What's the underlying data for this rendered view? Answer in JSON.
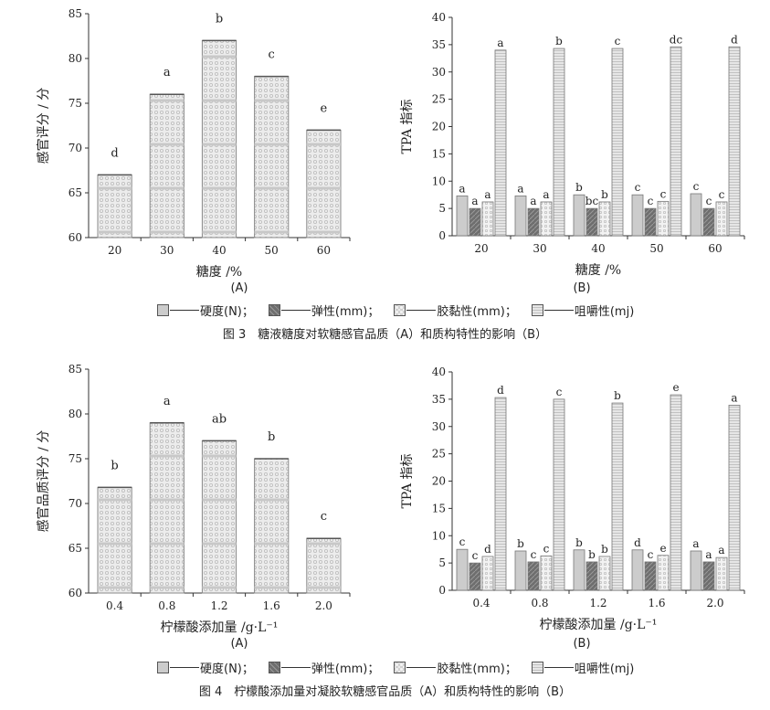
{
  "chart_data": [
    {
      "type": "bar",
      "panel": "(A)",
      "xlabel": "糖度 /%",
      "ylabel": "感官评分 / 分",
      "categories": [
        "20",
        "30",
        "40",
        "50",
        "60"
      ],
      "values": [
        67,
        76,
        82,
        78,
        72
      ],
      "letters": [
        "d",
        "a",
        "b",
        "c",
        "e"
      ],
      "ylim": [
        60,
        85
      ],
      "yticks": [
        60,
        65,
        70,
        75,
        80,
        85
      ]
    },
    {
      "type": "bar",
      "panel": "(B)",
      "xlabel": "糖度 /%",
      "ylabel": "TPA 指标",
      "categories": [
        "20",
        "30",
        "40",
        "50",
        "60"
      ],
      "ylim": [
        0,
        40
      ],
      "yticks": [
        0,
        5,
        10,
        15,
        20,
        25,
        30,
        35,
        40
      ],
      "series": [
        {
          "name": "硬度(N)",
          "values": [
            7.3,
            7.3,
            7.5,
            7.5,
            7.7
          ],
          "letters": [
            "a",
            "a",
            "b",
            "c",
            "c"
          ]
        },
        {
          "name": "弹性(mm)",
          "values": [
            5.0,
            5.0,
            5.0,
            5.0,
            5.0
          ],
          "letters": [
            "a",
            "a",
            "bc",
            "c",
            "c"
          ]
        },
        {
          "name": "胶黏性(mm)",
          "values": [
            6.2,
            6.2,
            6.2,
            6.3,
            6.2
          ],
          "letters": [
            "a",
            "a",
            "b",
            "c",
            "c"
          ]
        },
        {
          "name": "咀嚼性(mj)",
          "values": [
            34.0,
            34.3,
            34.3,
            34.6,
            34.6
          ],
          "letters": [
            "a",
            "b",
            "c",
            "dc",
            "d"
          ]
        }
      ]
    },
    {
      "type": "bar",
      "panel": "(A)",
      "xlabel": "柠檬酸添加量 /g·L⁻¹",
      "ylabel": "感官品质评分 / 分",
      "categories": [
        "0.4",
        "0.8",
        "1.2",
        "1.6",
        "2.0"
      ],
      "values": [
        71.8,
        79.0,
        77.0,
        75.0,
        66.1
      ],
      "letters": [
        "b",
        "a",
        "ab",
        "b",
        "c"
      ],
      "ylim": [
        60,
        85
      ],
      "yticks": [
        60,
        65,
        70,
        75,
        80,
        85
      ]
    },
    {
      "type": "bar",
      "panel": "(B)",
      "xlabel": "柠檬酸添加量 /g·L⁻¹",
      "ylabel": "TPA 指标",
      "categories": [
        "0.4",
        "0.8",
        "1.2",
        "1.6",
        "2.0"
      ],
      "ylim": [
        0,
        40
      ],
      "yticks": [
        0,
        5,
        10,
        15,
        20,
        25,
        30,
        35,
        40
      ],
      "series": [
        {
          "name": "硬度(N)",
          "values": [
            7.5,
            7.2,
            7.4,
            7.4,
            7.2
          ],
          "letters": [
            "c",
            "b",
            "b",
            "d",
            "a"
          ]
        },
        {
          "name": "弹性(mm)",
          "values": [
            5.0,
            5.2,
            5.2,
            5.2,
            5.2
          ],
          "letters": [
            "c",
            "c",
            "b",
            "c",
            "a"
          ]
        },
        {
          "name": "胶黏性(mm)",
          "values": [
            6.2,
            6.3,
            6.2,
            6.4,
            6.0
          ],
          "letters": [
            "d",
            "c",
            "b",
            "e",
            "a"
          ]
        },
        {
          "name": "咀嚼性(mj)",
          "values": [
            35.3,
            35.0,
            34.3,
            35.8,
            33.9
          ],
          "letters": [
            "d",
            "c",
            "b",
            "e",
            "a"
          ]
        }
      ]
    }
  ],
  "legend": {
    "hardness": "硬度(N)；",
    "springiness": "弹性(mm)；",
    "gumminess": "胶黏性(mm)；",
    "chewiness": "咀嚼性(mj)"
  },
  "captions": {
    "fig3": "图 3　糖液糖度对软糖感官品质（A）和质构特性的影响（B）",
    "fig4": "图 4　柠檬酸添加量对凝胶软糖感官品质（A）和质构特性的影响（B）"
  },
  "colors": {
    "hardness": "#cccccc",
    "springiness": "#666666",
    "gumminess": "#e6e6e6",
    "chewiness": "#dcdcdc",
    "sensory": "#e8e8e8",
    "axis": "#333333"
  }
}
